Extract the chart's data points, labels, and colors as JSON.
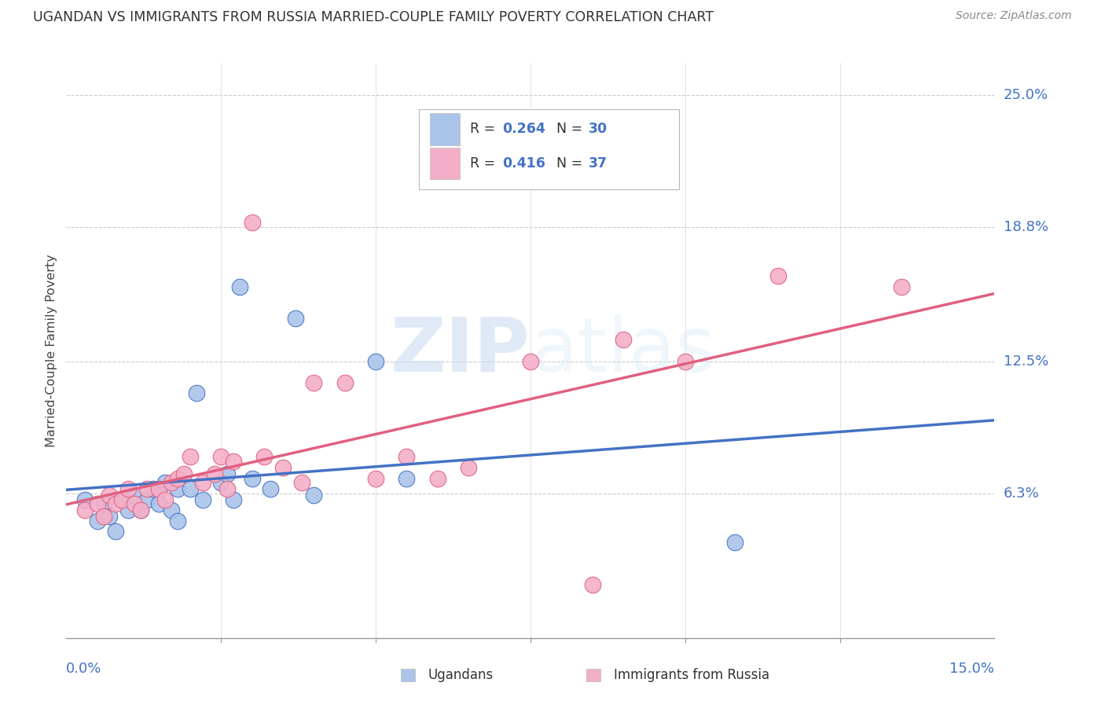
{
  "title": "UGANDAN VS IMMIGRANTS FROM RUSSIA MARRIED-COUPLE FAMILY POVERTY CORRELATION CHART",
  "source_text": "Source: ZipAtlas.com",
  "ylabel": "Married-Couple Family Poverty",
  "xmin": 0.0,
  "xmax": 0.15,
  "ymin": -0.005,
  "ymax": 0.265,
  "ugandan_color": "#aac4ea",
  "russia_color": "#f4afc8",
  "ugandan_line_color": "#4472c4",
  "russia_line_color": "#e06080",
  "axis_label_color": "#4472c4",
  "watermark_color": "#d8e8f5",
  "ugandan_x": [
    0.003,
    0.005,
    0.006,
    0.007,
    0.008,
    0.009,
    0.01,
    0.011,
    0.012,
    0.013,
    0.014,
    0.015,
    0.016,
    0.017,
    0.018,
    0.018,
    0.02,
    0.021,
    0.022,
    0.025,
    0.026,
    0.027,
    0.028,
    0.03,
    0.033,
    0.037,
    0.04,
    0.05,
    0.055,
    0.108
  ],
  "ugandan_y": [
    0.06,
    0.05,
    0.058,
    0.052,
    0.045,
    0.06,
    0.055,
    0.062,
    0.055,
    0.06,
    0.065,
    0.058,
    0.068,
    0.055,
    0.065,
    0.05,
    0.065,
    0.11,
    0.06,
    0.068,
    0.072,
    0.06,
    0.16,
    0.07,
    0.065,
    0.145,
    0.062,
    0.125,
    0.07,
    0.04
  ],
  "russia_x": [
    0.003,
    0.005,
    0.006,
    0.007,
    0.008,
    0.009,
    0.01,
    0.011,
    0.012,
    0.013,
    0.015,
    0.016,
    0.017,
    0.018,
    0.019,
    0.02,
    0.022,
    0.024,
    0.025,
    0.026,
    0.027,
    0.03,
    0.032,
    0.035,
    0.038,
    0.04,
    0.045,
    0.05,
    0.055,
    0.06,
    0.065,
    0.075,
    0.085,
    0.09,
    0.1,
    0.115,
    0.135
  ],
  "russia_y": [
    0.055,
    0.058,
    0.052,
    0.062,
    0.058,
    0.06,
    0.065,
    0.058,
    0.055,
    0.065,
    0.065,
    0.06,
    0.068,
    0.07,
    0.072,
    0.08,
    0.068,
    0.072,
    0.08,
    0.065,
    0.078,
    0.19,
    0.08,
    0.075,
    0.068,
    0.115,
    0.115,
    0.07,
    0.08,
    0.07,
    0.075,
    0.125,
    0.02,
    0.135,
    0.125,
    0.165,
    0.16
  ]
}
